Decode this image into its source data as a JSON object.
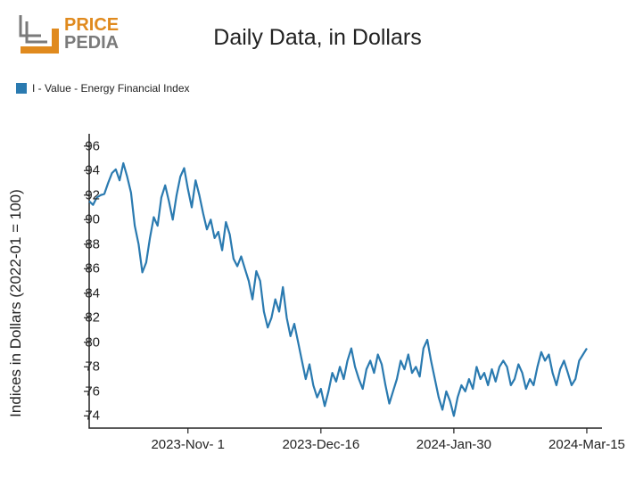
{
  "logo": {
    "top_text": "PRICE",
    "bottom_text": "PEDIA",
    "orange": "#e08a1e",
    "gray": "#7a7a7a",
    "dark": "#444444"
  },
  "title": "Daily Data, in Dollars",
  "legend": {
    "label": "I - Value - Energy Financial Index",
    "color": "#2a7ab0"
  },
  "chart": {
    "type": "line",
    "y_label": "Indices in Dollars (2022-01 = 100)",
    "line_color": "#2a7ab0",
    "line_width": 2.2,
    "background": "#ffffff",
    "axis_color": "#222222",
    "ylim": [
      73,
      97
    ],
    "yticks": [
      74,
      76,
      78,
      80,
      82,
      84,
      86,
      88,
      90,
      92,
      94,
      96
    ],
    "xlim": [
      0,
      135
    ],
    "xticks": [
      {
        "pos": 26,
        "label": "2023-Nov- 1"
      },
      {
        "pos": 61,
        "label": "2023-Dec-16"
      },
      {
        "pos": 96,
        "label": "2024-Jan-30"
      },
      {
        "pos": 131,
        "label": "2024-Mar-15"
      }
    ],
    "series": [
      {
        "x": 0,
        "y": 91.5
      },
      {
        "x": 1,
        "y": 91.2
      },
      {
        "x": 2,
        "y": 91.8
      },
      {
        "x": 3,
        "y": 92.0
      },
      {
        "x": 4,
        "y": 92.1
      },
      {
        "x": 5,
        "y": 93.0
      },
      {
        "x": 6,
        "y": 93.8
      },
      {
        "x": 7,
        "y": 94.1
      },
      {
        "x": 8,
        "y": 93.2
      },
      {
        "x": 9,
        "y": 94.6
      },
      {
        "x": 10,
        "y": 93.5
      },
      {
        "x": 11,
        "y": 92.2
      },
      {
        "x": 12,
        "y": 89.5
      },
      {
        "x": 13,
        "y": 88.0
      },
      {
        "x": 14,
        "y": 85.7
      },
      {
        "x": 15,
        "y": 86.5
      },
      {
        "x": 16,
        "y": 88.5
      },
      {
        "x": 17,
        "y": 90.2
      },
      {
        "x": 18,
        "y": 89.5
      },
      {
        "x": 19,
        "y": 91.8
      },
      {
        "x": 20,
        "y": 92.8
      },
      {
        "x": 21,
        "y": 91.5
      },
      {
        "x": 22,
        "y": 90.0
      },
      {
        "x": 23,
        "y": 92.0
      },
      {
        "x": 24,
        "y": 93.5
      },
      {
        "x": 25,
        "y": 94.2
      },
      {
        "x": 26,
        "y": 92.5
      },
      {
        "x": 27,
        "y": 91.0
      },
      {
        "x": 28,
        "y": 93.2
      },
      {
        "x": 29,
        "y": 92.0
      },
      {
        "x": 30,
        "y": 90.5
      },
      {
        "x": 31,
        "y": 89.2
      },
      {
        "x": 32,
        "y": 90.0
      },
      {
        "x": 33,
        "y": 88.5
      },
      {
        "x": 34,
        "y": 89.0
      },
      {
        "x": 35,
        "y": 87.5
      },
      {
        "x": 36,
        "y": 89.8
      },
      {
        "x": 37,
        "y": 88.8
      },
      {
        "x": 38,
        "y": 86.8
      },
      {
        "x": 39,
        "y": 86.2
      },
      {
        "x": 40,
        "y": 87.0
      },
      {
        "x": 41,
        "y": 86.0
      },
      {
        "x": 42,
        "y": 85.0
      },
      {
        "x": 43,
        "y": 83.5
      },
      {
        "x": 44,
        "y": 85.8
      },
      {
        "x": 45,
        "y": 85.0
      },
      {
        "x": 46,
        "y": 82.5
      },
      {
        "x": 47,
        "y": 81.2
      },
      {
        "x": 48,
        "y": 82.0
      },
      {
        "x": 49,
        "y": 83.5
      },
      {
        "x": 50,
        "y": 82.5
      },
      {
        "x": 51,
        "y": 84.5
      },
      {
        "x": 52,
        "y": 82.0
      },
      {
        "x": 53,
        "y": 80.5
      },
      {
        "x": 54,
        "y": 81.5
      },
      {
        "x": 55,
        "y": 80.0
      },
      {
        "x": 56,
        "y": 78.5
      },
      {
        "x": 57,
        "y": 77.0
      },
      {
        "x": 58,
        "y": 78.2
      },
      {
        "x": 59,
        "y": 76.5
      },
      {
        "x": 60,
        "y": 75.5
      },
      {
        "x": 61,
        "y": 76.2
      },
      {
        "x": 62,
        "y": 74.8
      },
      {
        "x": 63,
        "y": 76.0
      },
      {
        "x": 64,
        "y": 77.5
      },
      {
        "x": 65,
        "y": 76.8
      },
      {
        "x": 66,
        "y": 78.0
      },
      {
        "x": 67,
        "y": 77.0
      },
      {
        "x": 68,
        "y": 78.5
      },
      {
        "x": 69,
        "y": 79.5
      },
      {
        "x": 70,
        "y": 78.0
      },
      {
        "x": 71,
        "y": 77.0
      },
      {
        "x": 72,
        "y": 76.2
      },
      {
        "x": 73,
        "y": 77.8
      },
      {
        "x": 74,
        "y": 78.5
      },
      {
        "x": 75,
        "y": 77.5
      },
      {
        "x": 76,
        "y": 79.0
      },
      {
        "x": 77,
        "y": 78.2
      },
      {
        "x": 78,
        "y": 76.5
      },
      {
        "x": 79,
        "y": 75.0
      },
      {
        "x": 80,
        "y": 76.0
      },
      {
        "x": 81,
        "y": 77.0
      },
      {
        "x": 82,
        "y": 78.5
      },
      {
        "x": 83,
        "y": 77.8
      },
      {
        "x": 84,
        "y": 79.0
      },
      {
        "x": 85,
        "y": 77.5
      },
      {
        "x": 86,
        "y": 78.0
      },
      {
        "x": 87,
        "y": 77.2
      },
      {
        "x": 88,
        "y": 79.5
      },
      {
        "x": 89,
        "y": 80.2
      },
      {
        "x": 90,
        "y": 78.5
      },
      {
        "x": 91,
        "y": 77.0
      },
      {
        "x": 92,
        "y": 75.5
      },
      {
        "x": 93,
        "y": 74.5
      },
      {
        "x": 94,
        "y": 76.0
      },
      {
        "x": 95,
        "y": 75.2
      },
      {
        "x": 96,
        "y": 74.0
      },
      {
        "x": 97,
        "y": 75.5
      },
      {
        "x": 98,
        "y": 76.5
      },
      {
        "x": 99,
        "y": 76.0
      },
      {
        "x": 100,
        "y": 77.0
      },
      {
        "x": 101,
        "y": 76.2
      },
      {
        "x": 102,
        "y": 78.0
      },
      {
        "x": 103,
        "y": 77.0
      },
      {
        "x": 104,
        "y": 77.5
      },
      {
        "x": 105,
        "y": 76.5
      },
      {
        "x": 106,
        "y": 77.8
      },
      {
        "x": 107,
        "y": 76.8
      },
      {
        "x": 108,
        "y": 78.0
      },
      {
        "x": 109,
        "y": 78.5
      },
      {
        "x": 110,
        "y": 78.0
      },
      {
        "x": 111,
        "y": 76.5
      },
      {
        "x": 112,
        "y": 77.0
      },
      {
        "x": 113,
        "y": 78.2
      },
      {
        "x": 114,
        "y": 77.5
      },
      {
        "x": 115,
        "y": 76.2
      },
      {
        "x": 116,
        "y": 77.0
      },
      {
        "x": 117,
        "y": 76.5
      },
      {
        "x": 118,
        "y": 78.0
      },
      {
        "x": 119,
        "y": 79.2
      },
      {
        "x": 120,
        "y": 78.5
      },
      {
        "x": 121,
        "y": 79.0
      },
      {
        "x": 122,
        "y": 77.5
      },
      {
        "x": 123,
        "y": 76.5
      },
      {
        "x": 124,
        "y": 77.8
      },
      {
        "x": 125,
        "y": 78.5
      },
      {
        "x": 126,
        "y": 77.5
      },
      {
        "x": 127,
        "y": 76.5
      },
      {
        "x": 128,
        "y": 77.0
      },
      {
        "x": 129,
        "y": 78.5
      },
      {
        "x": 130,
        "y": 79.0
      },
      {
        "x": 131,
        "y": 79.5
      }
    ]
  }
}
